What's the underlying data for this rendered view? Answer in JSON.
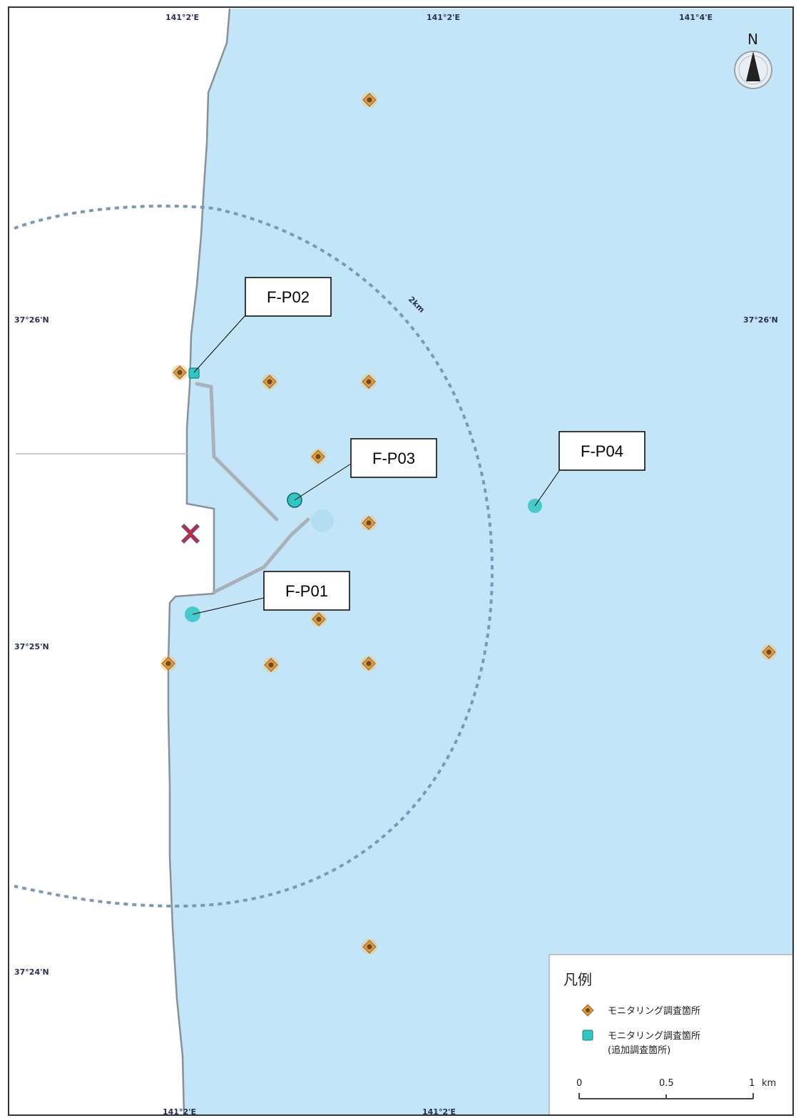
{
  "map": {
    "colors": {
      "sea": "#c2e6f8",
      "land": "#ffffff",
      "coast": "#8a9098",
      "boundary": "#8f9aa6",
      "arc": "#7a98b8",
      "orange_point": "#e59a3a",
      "teal_point": "#2fc7c2"
    },
    "top_coords": [
      "141°2'E",
      "141°2'E",
      "141°4'E"
    ],
    "bottom_coords": [
      "141°2'E",
      "141°2'E"
    ],
    "left_coords": [
      "37°26'N",
      "37°25'N",
      "37°24'N"
    ],
    "right_coords": [
      "37°26'N"
    ],
    "arc_label": "2km",
    "north_label": "N",
    "callouts": [
      {
        "id": "fp02",
        "label": "F-P02"
      },
      {
        "id": "fp03",
        "label": "F-P03"
      },
      {
        "id": "fp04",
        "label": "F-P04"
      },
      {
        "id": "fp01",
        "label": "F-P01"
      }
    ],
    "facility_icon": "red-x-icon",
    "legend": {
      "title": "凡例",
      "items": [
        {
          "icon": "orange-point-icon",
          "label": "モニタリング調査箇所"
        },
        {
          "icon": "teal-point-icon",
          "label": "モニタリング調査箇所",
          "sub": "(追加調査箇所)"
        }
      ],
      "scale": {
        "ticks": [
          "0",
          "0.5",
          "1"
        ],
        "unit": "km"
      }
    }
  }
}
